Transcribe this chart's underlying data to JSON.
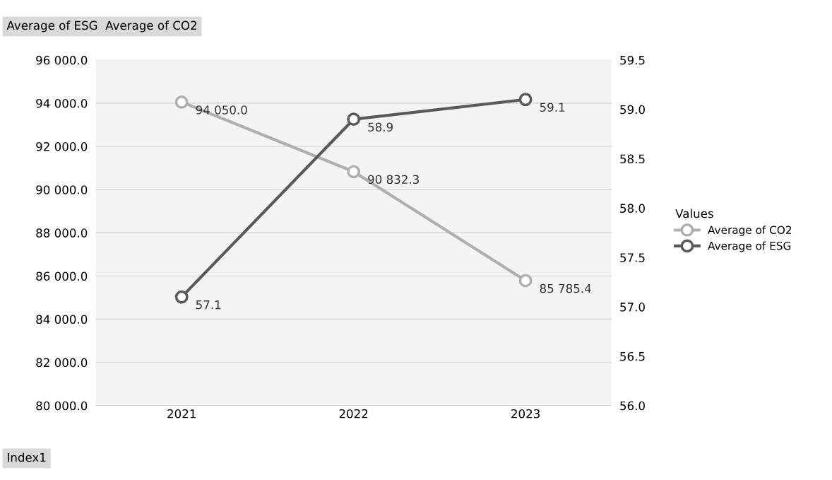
{
  "chart_data": {
    "type": "line",
    "title": "Average of ESG  Average of CO2",
    "xlabel": "Index1",
    "legend_title": "Values",
    "categories": [
      "2021",
      "2022",
      "2023"
    ],
    "series": [
      {
        "name": "Average of CO2",
        "color": "#afafaf",
        "values": [
          94050.0,
          90832.3,
          85785.4
        ],
        "value_labels": [
          "94 050.0",
          "90 832.3",
          "85 785.4"
        ]
      },
      {
        "name": "Average of ESG",
        "color": "#595959",
        "axis": "y2",
        "values": [
          57.1,
          58.9,
          59.1
        ],
        "value_labels": [
          "57.1",
          "58.9",
          "59.1"
        ]
      }
    ],
    "ylim": [
      80000,
      96000
    ],
    "yticks": [
      {
        "value": 80000,
        "label": "80 000.0"
      },
      {
        "value": 82000,
        "label": "82 000.0"
      },
      {
        "value": 84000,
        "label": "84 000.0"
      },
      {
        "value": 86000,
        "label": "86 000.0"
      },
      {
        "value": 88000,
        "label": "88 000.0"
      },
      {
        "value": 90000,
        "label": "90 000.0"
      },
      {
        "value": 92000,
        "label": "92 000.0"
      },
      {
        "value": 94000,
        "label": "94 000.0"
      },
      {
        "value": 96000,
        "label": "96 000.0"
      }
    ],
    "y2lim": [
      56,
      59.5
    ],
    "y2ticks": [
      {
        "value": 56,
        "label": "56.0"
      },
      {
        "value": 56.5,
        "label": "56.5"
      },
      {
        "value": 57,
        "label": "57.0"
      },
      {
        "value": 57.5,
        "label": "57.5"
      },
      {
        "value": 58,
        "label": "58.0"
      },
      {
        "value": 58.5,
        "label": "58.5"
      },
      {
        "value": 59,
        "label": "59.0"
      },
      {
        "value": 59.5,
        "label": "59.5"
      }
    ],
    "grid": true,
    "legend": "right",
    "marker": "circle",
    "line_style": "solid"
  }
}
